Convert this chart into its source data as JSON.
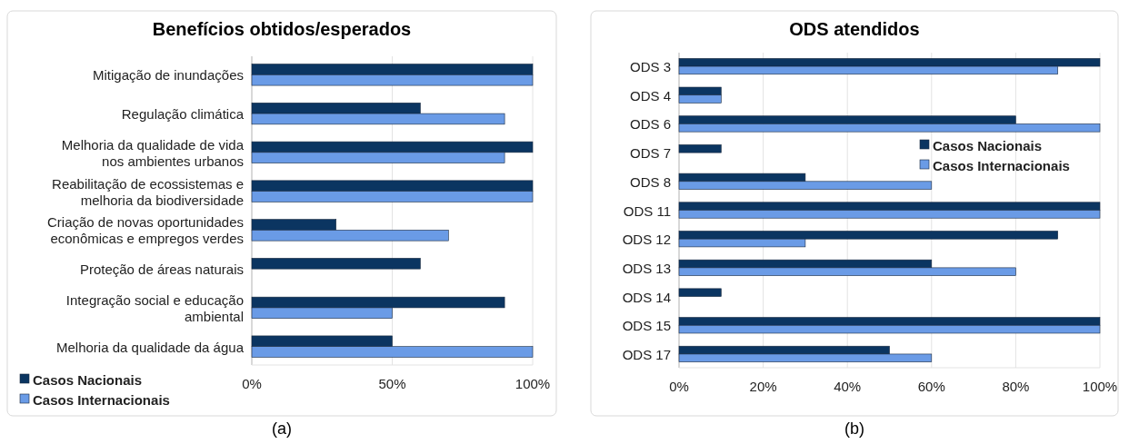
{
  "chart_data": [
    {
      "type": "bar",
      "orientation": "horizontal",
      "title": "Benefícios obtidos/esperados",
      "categories": [
        "Mitigação de inundações",
        "Regulação climática",
        "Melhoria da qualidade de vida\nnos ambientes urbanos",
        "Reabilitação de ecossistemas e\nmelhoria da biodiversidade",
        "Criação de novas oportunidades\neconômicas e empregos verdes",
        "Proteção de áreas naturais",
        "Integração social e educação\nambiental",
        "Melhoria da qualidade da água"
      ],
      "series": [
        {
          "name": "Casos Nacionais",
          "color": "#0b3561",
          "values": [
            100,
            60,
            100,
            100,
            30,
            60,
            90,
            50
          ]
        },
        {
          "name": "Casos Internacionais",
          "color": "#6a9be6",
          "values": [
            100,
            90,
            90,
            100,
            70,
            null,
            50,
            100
          ]
        }
      ],
      "xlim": [
        0,
        100
      ],
      "xticks": [
        {
          "value": 0,
          "label": "0%"
        },
        {
          "value": 50,
          "label": "50%"
        },
        {
          "value": 100,
          "label": "100%"
        }
      ],
      "grid": "x",
      "legend": "bottom left",
      "annotations": [
        "(a)"
      ]
    },
    {
      "type": "bar",
      "orientation": "horizontal",
      "title": "ODS atendidos",
      "categories": [
        "ODS 3",
        "ODS 4",
        "ODS 6",
        "ODS 7",
        "ODS 8",
        "ODS 11",
        "ODS 12",
        "ODS 13",
        "ODS 14",
        "ODS 15",
        "ODS 17"
      ],
      "series": [
        {
          "name": "Casos Nacionais",
          "color": "#0b3561",
          "values": [
            100,
            10,
            80,
            10,
            30,
            100,
            90,
            60,
            10,
            100,
            50
          ]
        },
        {
          "name": "Casos Internacionais",
          "color": "#6a9be6",
          "values": [
            90,
            10,
            100,
            null,
            60,
            100,
            30,
            80,
            null,
            100,
            60
          ]
        }
      ],
      "xlim": [
        0,
        100
      ],
      "xticks": [
        {
          "value": 0,
          "label": "0%"
        },
        {
          "value": 20,
          "label": "20%"
        },
        {
          "value": 40,
          "label": "40%"
        },
        {
          "value": 60,
          "label": "60%"
        },
        {
          "value": 80,
          "label": "80%"
        },
        {
          "value": 100,
          "label": "100%"
        }
      ],
      "grid": "x",
      "legend": "right",
      "annotations": [
        "(b)"
      ]
    }
  ]
}
